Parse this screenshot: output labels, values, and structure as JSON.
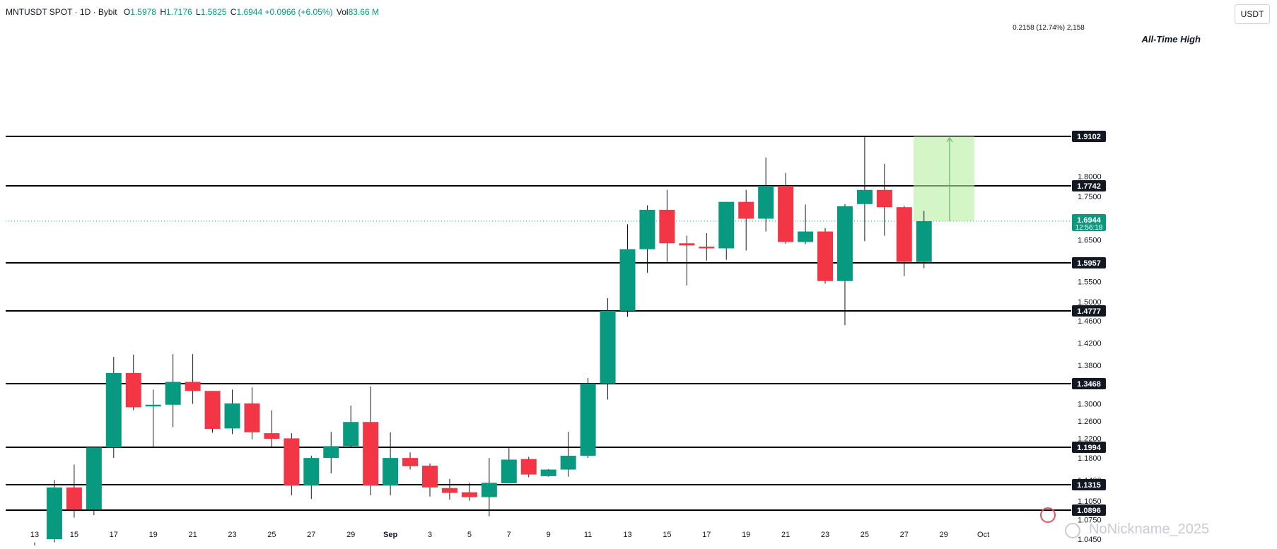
{
  "header": {
    "symbol": "MNTUSDT SPOT · 1D · Bybit",
    "o_label": "O",
    "o_value": "1.5978",
    "h_label": "H",
    "h_value": "1.7176",
    "l_label": "L",
    "l_value": "1.5825",
    "c_label": "C",
    "c_value": "1.6944",
    "change": "+0.0966 (+6.05%)",
    "vol_label": "Vol",
    "vol_value": "83.66 M",
    "currency": "USDT"
  },
  "annotations": {
    "ath_label": "All-Time High",
    "measure_label": "0.2158 (12.74%) 2,158",
    "price_tag": "1.6944",
    "countdown": "12:56:18"
  },
  "watermark": "NoNickname_2025",
  "colors": {
    "up": "#089981",
    "down": "#f23645",
    "level_line": "#000000",
    "current_price": "#089981",
    "measure_fill": "#b8f0a0"
  },
  "chart_data": {
    "type": "candlestick",
    "timeframe": "1D",
    "y_axis_ticks": [
      "1.8000",
      "1.7500",
      "1.6500",
      "1.5500",
      "1.5000",
      "1.4600",
      "1.4200",
      "1.3800",
      "1.3000",
      "1.2600",
      "1.2200",
      "1.1800",
      "1.1400",
      "1.1050",
      "1.0750",
      "1.0450"
    ],
    "x_axis_ticks": [
      "13",
      "15",
      "17",
      "19",
      "21",
      "23",
      "25",
      "27",
      "29",
      "Sep",
      "3",
      "5",
      "7",
      "9",
      "11",
      "13",
      "15",
      "17",
      "19",
      "21",
      "23",
      "25",
      "27",
      "29",
      "Oct"
    ],
    "horizontal_levels": [
      1.9102,
      1.7742,
      1.5957,
      1.4777,
      1.3468,
      1.1994,
      1.1315,
      1.0896
    ],
    "current_price": 1.6944,
    "measure": {
      "from": 1.6944,
      "to": 1.9102
    },
    "candles": [
      {
        "o": 1.03,
        "h": 1.04,
        "l": 1.025,
        "c": 1.032
      },
      {
        "o": 1.045,
        "h": 1.14,
        "l": 1.04,
        "c": 1.127
      },
      {
        "o": 1.127,
        "h": 1.168,
        "l": 1.078,
        "c": 1.091
      },
      {
        "o": 1.091,
        "h": 1.2,
        "l": 1.082,
        "c": 1.199
      },
      {
        "o": 1.199,
        "h": 1.395,
        "l": 1.18,
        "c": 1.366
      },
      {
        "o": 1.366,
        "h": 1.399,
        "l": 1.285,
        "c": 1.292
      },
      {
        "o": 1.294,
        "h": 1.333,
        "l": 1.198,
        "c": 1.298
      },
      {
        "o": 1.298,
        "h": 1.4,
        "l": 1.246,
        "c": 1.35
      },
      {
        "o": 1.35,
        "h": 1.4,
        "l": 1.3,
        "c": 1.33
      },
      {
        "o": 1.33,
        "h": 1.33,
        "l": 1.233,
        "c": 1.242
      },
      {
        "o": 1.243,
        "h": 1.333,
        "l": 1.23,
        "c": 1.301
      },
      {
        "o": 1.301,
        "h": 1.338,
        "l": 1.218,
        "c": 1.234
      },
      {
        "o": 1.232,
        "h": 1.285,
        "l": 1.2,
        "c": 1.219
      },
      {
        "o": 1.22,
        "h": 1.232,
        "l": 1.114,
        "c": 1.13
      },
      {
        "o": 1.13,
        "h": 1.184,
        "l": 1.108,
        "c": 1.18
      },
      {
        "o": 1.18,
        "h": 1.235,
        "l": 1.152,
        "c": 1.202
      },
      {
        "o": 1.202,
        "h": 1.296,
        "l": 1.2,
        "c": 1.258
      },
      {
        "o": 1.258,
        "h": 1.34,
        "l": 1.114,
        "c": 1.13
      },
      {
        "o": 1.13,
        "h": 1.234,
        "l": 1.114,
        "c": 1.18
      },
      {
        "o": 1.18,
        "h": 1.19,
        "l": 1.159,
        "c": 1.165
      },
      {
        "o": 1.166,
        "h": 1.17,
        "l": 1.112,
        "c": 1.127
      },
      {
        "o": 1.126,
        "h": 1.142,
        "l": 1.107,
        "c": 1.118
      },
      {
        "o": 1.119,
        "h": 1.135,
        "l": 1.105,
        "c": 1.111
      },
      {
        "o": 1.111,
        "h": 1.18,
        "l": 1.08,
        "c": 1.135
      },
      {
        "o": 1.134,
        "h": 1.2,
        "l": 1.134,
        "c": 1.177
      },
      {
        "o": 1.178,
        "h": 1.182,
        "l": 1.145,
        "c": 1.15
      },
      {
        "o": 1.147,
        "h": 1.16,
        "l": 1.146,
        "c": 1.159
      },
      {
        "o": 1.159,
        "h": 1.235,
        "l": 1.146,
        "c": 1.184
      },
      {
        "o": 1.184,
        "h": 1.357,
        "l": 1.18,
        "c": 1.347
      },
      {
        "o": 1.347,
        "h": 1.509,
        "l": 1.31,
        "c": 1.478
      },
      {
        "o": 1.478,
        "h": 1.687,
        "l": 1.467,
        "c": 1.628
      },
      {
        "o": 1.628,
        "h": 1.73,
        "l": 1.571,
        "c": 1.72
      },
      {
        "o": 1.72,
        "h": 1.765,
        "l": 1.598,
        "c": 1.642
      },
      {
        "o": 1.642,
        "h": 1.66,
        "l": 1.54,
        "c": 1.637
      },
      {
        "o": 1.634,
        "h": 1.666,
        "l": 1.601,
        "c": 1.63
      },
      {
        "o": 1.63,
        "h": 1.736,
        "l": 1.603,
        "c": 1.738
      },
      {
        "o": 1.738,
        "h": 1.765,
        "l": 1.625,
        "c": 1.7
      },
      {
        "o": 1.7,
        "h": 1.852,
        "l": 1.67,
        "c": 1.774
      },
      {
        "o": 1.774,
        "h": 1.81,
        "l": 1.641,
        "c": 1.645
      },
      {
        "o": 1.645,
        "h": 1.732,
        "l": 1.64,
        "c": 1.67
      },
      {
        "o": 1.67,
        "h": 1.678,
        "l": 1.545,
        "c": 1.551
      },
      {
        "o": 1.551,
        "h": 1.733,
        "l": 1.452,
        "c": 1.728
      },
      {
        "o": 1.733,
        "h": 1.91,
        "l": 1.647,
        "c": 1.765
      },
      {
        "o": 1.765,
        "h": 1.835,
        "l": 1.66,
        "c": 1.726
      },
      {
        "o": 1.726,
        "h": 1.729,
        "l": 1.563,
        "c": 1.598
      },
      {
        "o": 1.5978,
        "h": 1.7176,
        "l": 1.5825,
        "c": 1.6944
      }
    ]
  }
}
